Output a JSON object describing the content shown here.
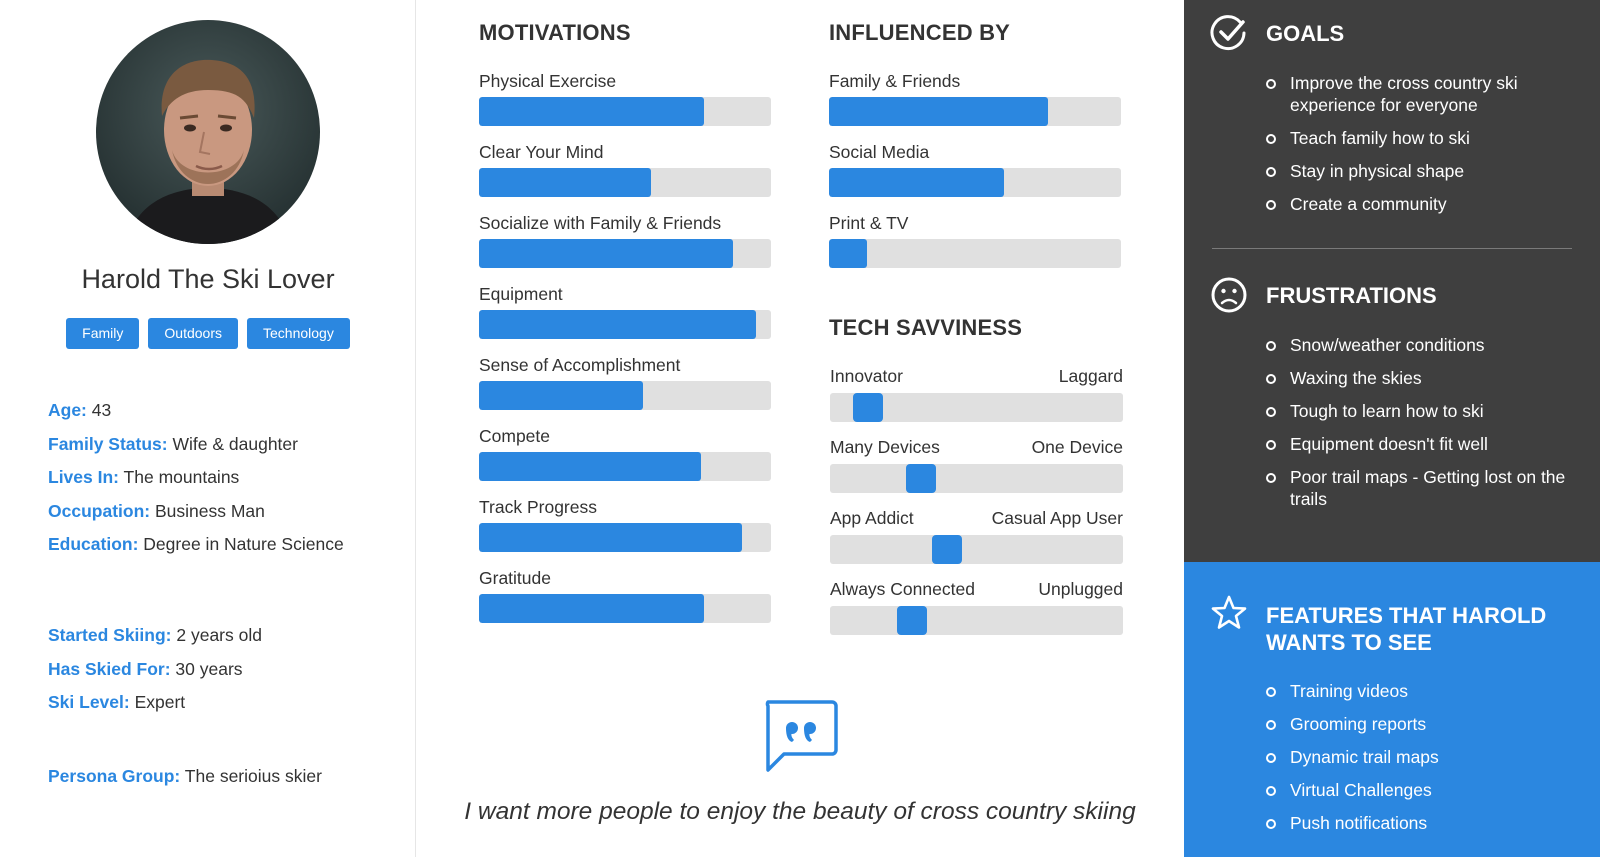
{
  "persona": {
    "name": "Harold The Ski Lover",
    "tags": [
      "Family",
      "Outdoors",
      "Technology"
    ],
    "details": [
      {
        "key": "Age:",
        "value": "43"
      },
      {
        "key": "Family Status:",
        "value": "Wife & daughter"
      },
      {
        "key": "Lives In:",
        "value": "The mountains"
      },
      {
        "key": "Occupation:",
        "value": "Business Man"
      },
      {
        "key": "Education:",
        "value": "Degree in Nature Science"
      }
    ],
    "ski": [
      {
        "key": "Started Skiing:",
        "value": "2 years old"
      },
      {
        "key": "Has Skied For:",
        "value": "30 years"
      },
      {
        "key": "Ski Level:",
        "value": "Expert"
      }
    ],
    "group": {
      "key": "Persona Group:",
      "value": "The serioius skier"
    }
  },
  "motivations": {
    "title": "MOTIVATIONS",
    "items": [
      {
        "label": "Physical Exercise",
        "level": 0.77
      },
      {
        "label": "Clear Your Mind",
        "level": 0.59
      },
      {
        "label": "Socialize with Family & Friends",
        "level": 0.87
      },
      {
        "label": "Equipment",
        "level": 0.95
      },
      {
        "label": "Sense of Accomplishment",
        "level": 0.56
      },
      {
        "label": "Compete",
        "level": 0.76
      },
      {
        "label": "Track Progress",
        "level": 0.9
      },
      {
        "label": "Gratitude",
        "level": 0.77
      }
    ]
  },
  "influenced_by": {
    "title": "INFLUENCED BY",
    "items": [
      {
        "label": "Family & Friends",
        "level": 0.75
      },
      {
        "label": "Social Media",
        "level": 0.6
      },
      {
        "label": "Print & TV",
        "level": 0.13
      }
    ]
  },
  "tech": {
    "title": "TECH SAVVINESS",
    "items": [
      {
        "left": "Innovator",
        "right": "Laggard",
        "position": 0.13
      },
      {
        "left": "Many Devices",
        "right": "One Device",
        "position": 0.31
      },
      {
        "left": "App Addict",
        "right": "Casual App User",
        "position": 0.4
      },
      {
        "left": "Always Connected",
        "right": "Unplugged",
        "position": 0.28
      }
    ]
  },
  "quote": {
    "text": "I want more people to enjoy the beauty of cross country skiing",
    "icon": "quote-icon"
  },
  "goals": {
    "title": "GOALS",
    "icon": "check-circle-icon",
    "items": [
      "Improve the cross country ski experience for everyone",
      "Teach family how to ski",
      "Stay in physical shape",
      "Create a community"
    ]
  },
  "frustrations": {
    "title": "FRUSTRATIONS",
    "icon": "sad-face-icon",
    "items": [
      "Snow/weather conditions",
      "Waxing the skies",
      "Tough to learn how to ski",
      "Equipment doesn't fit well",
      "Poor trail maps - Getting lost on the trails"
    ]
  },
  "features": {
    "title": "FEATURES THAT HAROLD WANTS TO SEE",
    "icon": "star-icon",
    "items": [
      "Training videos",
      "Grooming reports",
      "Dynamic trail maps",
      "Virtual Challenges",
      "Push notifications"
    ]
  },
  "colors": {
    "accent": "#2b87e0",
    "track": "#e0e0e0",
    "dark_panel": "#3f3f3f",
    "text": "#333333"
  }
}
